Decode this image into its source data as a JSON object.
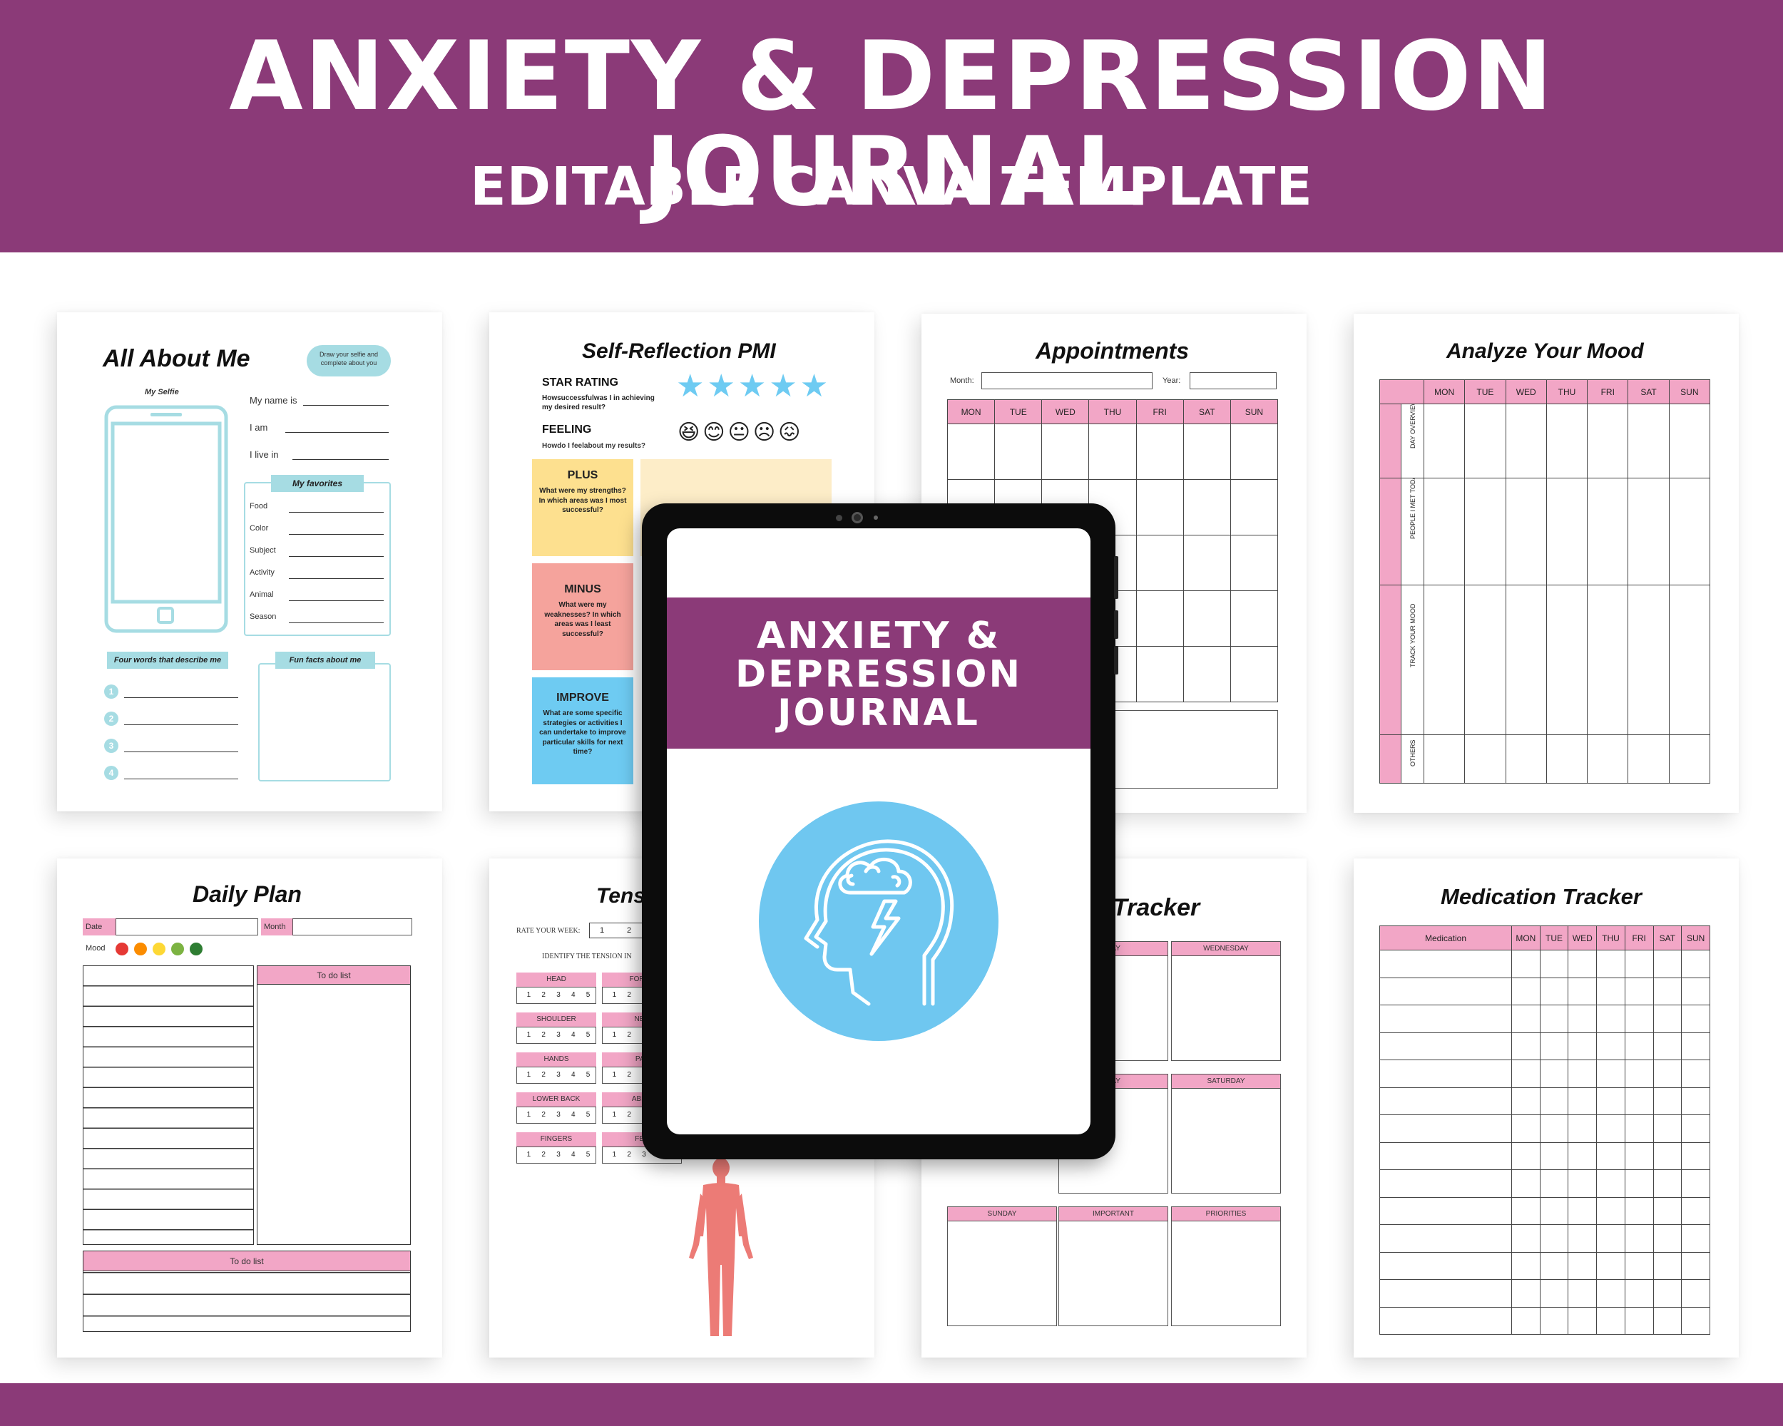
{
  "header": {
    "title": "ANXIETY & DEPRESSION  JOURNAL",
    "subtitle": "EDITABLE CANVA TEMPLATE"
  },
  "about_me": {
    "title": "All About Me",
    "tip": "Draw your selfie and complete about you",
    "selfie_label": "My Selfie",
    "fields": [
      "My name is",
      "I am",
      "I live in"
    ],
    "favorites_title": "My favorites",
    "favorites": [
      "Food",
      "Color",
      "Subject",
      "Activity",
      "Animal",
      "Season"
    ],
    "four_words_title": "Four words that describe me",
    "numbers": [
      "1",
      "2",
      "3",
      "4"
    ],
    "fun_facts_title": "Fun facts about me"
  },
  "pmi": {
    "title": "Self-Reflection PMI",
    "star_label": "STAR RATING",
    "star_question": "Howsuccessfulwas I in achieving my desired result?",
    "stars": "★★★★★",
    "feeling_label": "FEELING",
    "feeling_question": "Howdo I feelabout my results?",
    "faces": [
      "😆",
      "😊",
      "😐",
      "☹",
      "😖"
    ],
    "plus_title": "PLUS",
    "plus_text": "What were my strengths? In which areas was I most successful?",
    "minus_title": "MINUS",
    "minus_text": "What were my weaknesses? In which areas was I least successful?",
    "improve_title": "IMPROVE",
    "improve_text": "What are some specific strategies or activities I can undertake to improve particular skills for next time?"
  },
  "appointments": {
    "title": "Appointments",
    "month_label": "Month:",
    "year_label": "Year:",
    "days": [
      "MON",
      "TUE",
      "WED",
      "THU",
      "FRI",
      "SAT",
      "SUN"
    ]
  },
  "mood": {
    "title": "Analyze Your Mood",
    "days": [
      "MON",
      "TUE",
      "WED",
      "THU",
      "FRI",
      "SAT",
      "SUN"
    ],
    "rows": [
      "DAY OVERVIEW",
      "PEOPLE I MET TODAY",
      "TRACK YOUR MOOD",
      "OTHERS"
    ]
  },
  "daily_plan": {
    "title": "Daily Plan",
    "date_label": "Date",
    "month_label": "Month",
    "mood_label": "Mood",
    "todo_label": "To do list",
    "todo_bottom_label": "To do list"
  },
  "tension": {
    "title": "Tens",
    "rate_label": "RATE YOUR WEEK:",
    "rate_values": [
      "1",
      "2"
    ],
    "identify_label": "IDENTIFY THE TENSION IN",
    "left_parts": [
      "HEAD",
      "SHOULDER",
      "HANDS",
      "LOWER BACK",
      "FINGERS"
    ],
    "right_parts": [
      "FOREH",
      "NEC",
      "PAL",
      "ABDO",
      "FEE"
    ],
    "scale": [
      "1",
      "2",
      "3",
      "4",
      "5"
    ]
  },
  "tracker": {
    "title": "Tracker",
    "top": [
      "DAY",
      "WEDNESDAY"
    ],
    "middle": [
      "DAY",
      "SATURDAY"
    ],
    "bottom": [
      "SUNDAY",
      "IMPORTANT",
      "PRIORITIES"
    ]
  },
  "medication": {
    "title": "Medication Tracker",
    "columns": [
      "Medication",
      "MON",
      "TUE",
      "WED",
      "THU",
      "FRI",
      "SAT",
      "SUN"
    ]
  },
  "cover": {
    "line1": "ANXIETY &",
    "line2": "DEPRESSION",
    "line3": "JOURNAL"
  },
  "colors": {
    "brand_purple": "#8b3a78",
    "pink": "#f2a6c6",
    "light_blue": "#6fc7f0",
    "teal": "#a6dce3",
    "yellow": "#fde08f",
    "salmon": "#f5a39c",
    "sky": "#6ecbf2"
  },
  "icons": [
    "brain-storm-head-icon",
    "phone-frame-icon",
    "star-icon",
    "mood-face-icon",
    "human-body-figure-icon"
  ]
}
